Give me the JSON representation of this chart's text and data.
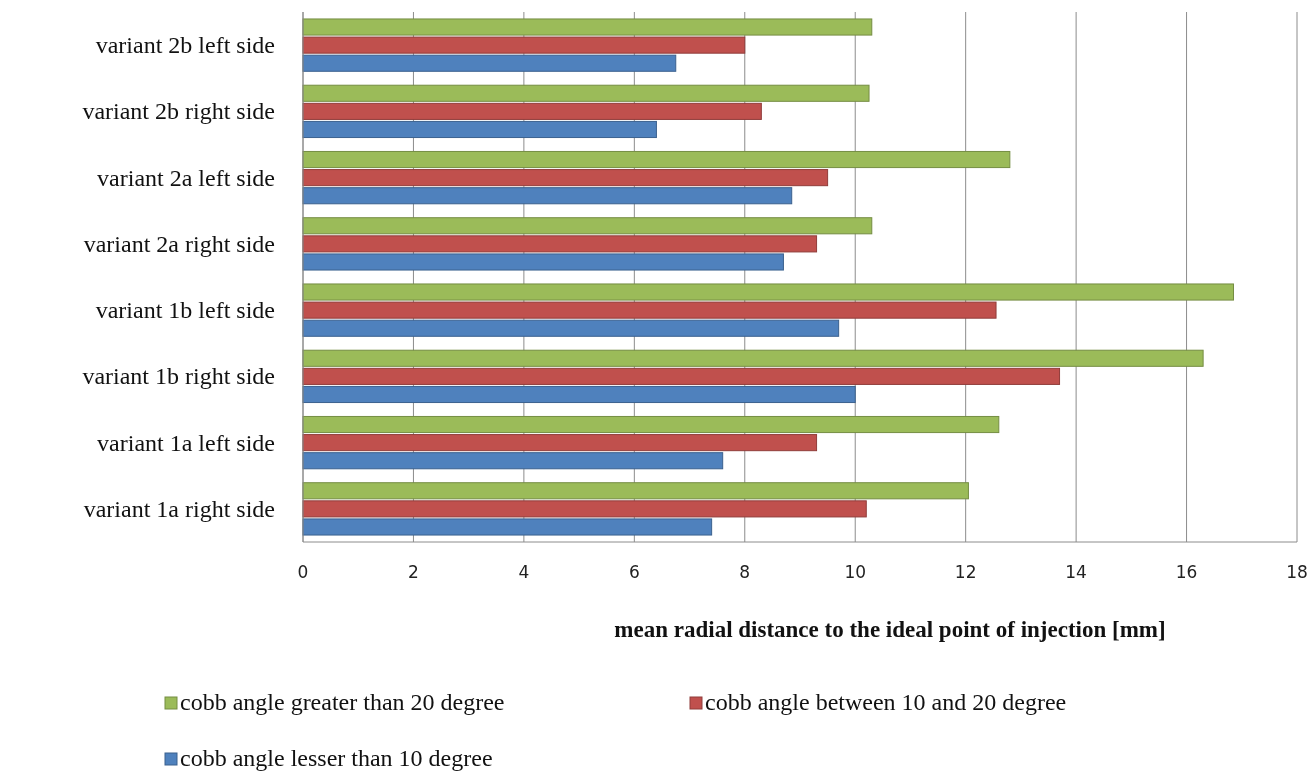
{
  "chart_data": {
    "type": "bar",
    "orientation": "horizontal",
    "categories": [
      "variant 2b left side",
      "variant 2b right side",
      "variant 2a left side",
      "variant 2a right side",
      "variant 1b left side",
      "variant 1b right side",
      "variant 1a left side",
      "variant 1a right side"
    ],
    "series": [
      {
        "name": "cobb angle greater than 20 degree",
        "color": "#9bbb59",
        "values": [
          10.3,
          10.25,
          12.8,
          10.3,
          16.85,
          16.3,
          12.6,
          12.05
        ]
      },
      {
        "name": "cobb angle between 10 and 20 degree",
        "color": "#c0504d",
        "values": [
          8.0,
          8.3,
          9.5,
          9.3,
          12.55,
          13.7,
          9.3,
          10.2
        ]
      },
      {
        "name": "cobb angle lesser than 10 degree",
        "color": "#4f81bd",
        "values": [
          6.75,
          6.4,
          8.85,
          8.7,
          9.7,
          10.0,
          7.6,
          7.4
        ]
      }
    ],
    "xlabel": "mean radial distance to the ideal point of injection [mm]",
    "xlim": [
      0,
      18
    ],
    "xticks": [
      0,
      2,
      4,
      6,
      8,
      10,
      12,
      14,
      16,
      18
    ],
    "grid": "x",
    "legend": "bottom"
  }
}
